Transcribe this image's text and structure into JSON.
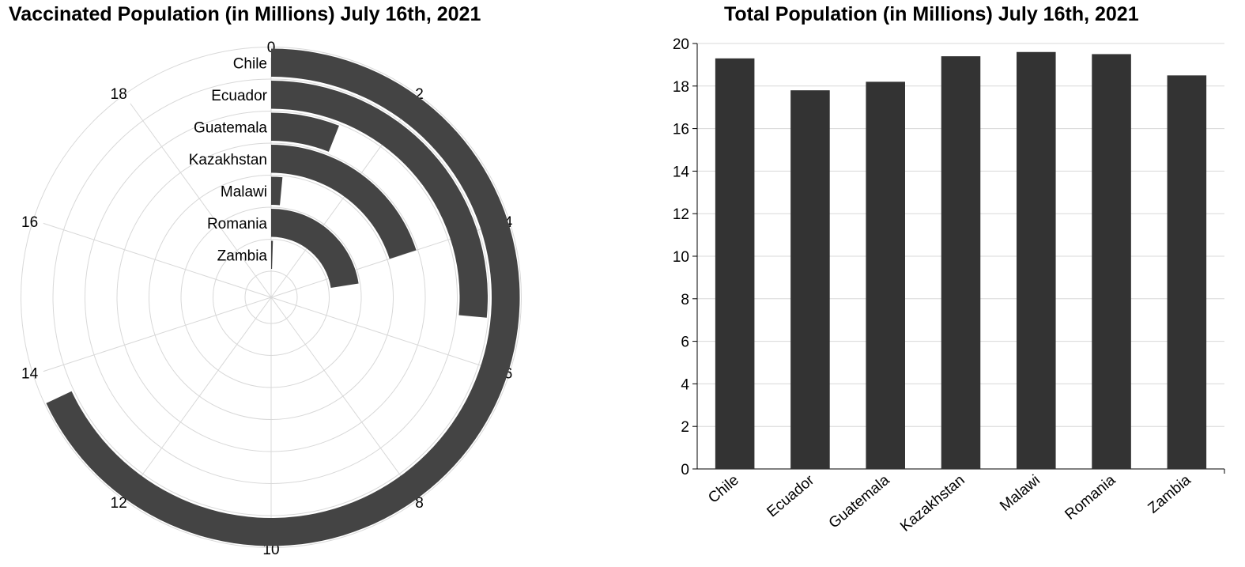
{
  "chart_data": [
    {
      "type": "radial-bar",
      "title": "Vaccinated Population (in Millions) July 16th, 2021",
      "categories": [
        "Chile",
        "Ecuador",
        "Guatemala",
        "Kazakhstan",
        "Malawi",
        "Romania",
        "Zambia"
      ],
      "values": [
        13.6,
        5.3,
        1.2,
        4.0,
        0.3,
        4.5,
        0.1
      ],
      "angular_range": [
        0,
        20
      ],
      "angular_ticks": [
        0,
        2,
        4,
        6,
        8,
        10,
        12,
        14,
        16,
        18
      ],
      "grid": true,
      "bar_color": "#444444",
      "grid_color": "#d8d8d8"
    },
    {
      "type": "bar",
      "title": "Total Population (in Millions) July 16th, 2021",
      "categories": [
        "Chile",
        "Ecuador",
        "Guatemala",
        "Kazakhstan",
        "Malawi",
        "Romania",
        "Zambia"
      ],
      "values": [
        19.3,
        17.8,
        18.2,
        19.4,
        19.6,
        19.5,
        18.5
      ],
      "xlabel": "",
      "ylabel": "",
      "ylim": [
        0,
        20
      ],
      "yticks": [
        0,
        2,
        4,
        6,
        8,
        10,
        12,
        14,
        16,
        18,
        20
      ],
      "grid": true,
      "bar_color": "#333333",
      "grid_color": "#d8d8d8"
    }
  ]
}
